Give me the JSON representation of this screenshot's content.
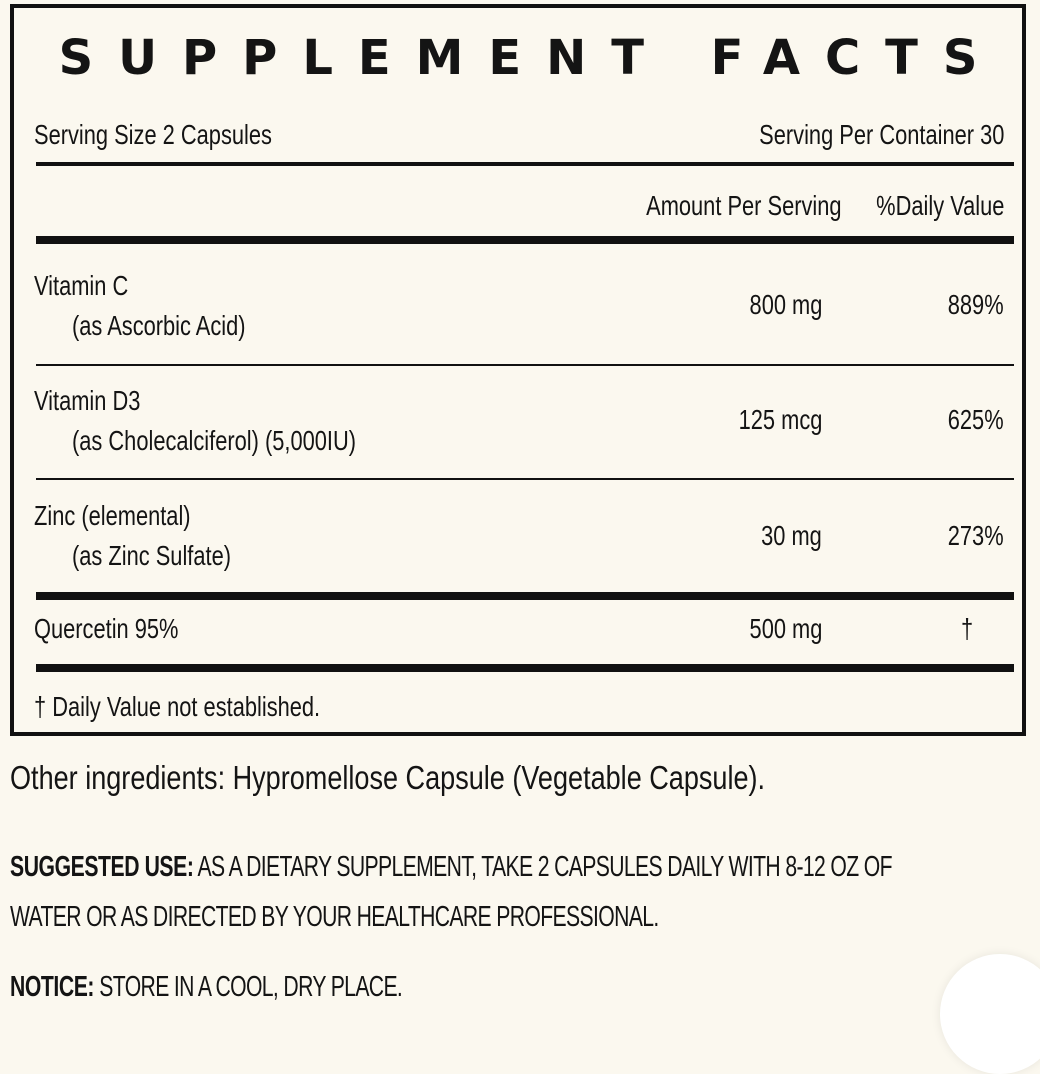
{
  "panel": {
    "title": "SUPPLEMENT FACTS",
    "serving_size": "Serving Size 2 Capsules",
    "servings_per_container": "Serving Per Container  30",
    "amount_header": "Amount Per Serving",
    "dv_header": "%Daily Value",
    "rows": [
      {
        "name": "Vitamin C",
        "detail": "(as Ascorbic Acid)",
        "amount": "800 mg",
        "dv": "889%"
      },
      {
        "name": "Vitamin D3",
        "detail": "(as Cholecalciferol) (5,000IU)",
        "amount": "125 mcg",
        "dv": "625%"
      },
      {
        "name": "Zinc (elemental)",
        "detail": "(as Zinc Sulfate)",
        "amount": "30 mg",
        "dv": "273%"
      },
      {
        "name": "Quercetin 95%",
        "amount": "500 mg",
        "dv": "†"
      }
    ],
    "footnote": "† Daily Value not established."
  },
  "other_ingredients": "Other ingredients: Hypromellose Capsule (Vegetable Capsule).",
  "suggested_use": {
    "label": "SUGGESTED USE:",
    "line1": " AS A DIETARY SUPPLEMENT, TAKE 2 CAPSULES DAILY WITH 8-12 OZ OF",
    "line2": "WATER OR AS DIRECTED BY YOUR HEALTHCARE PROFESSIONAL."
  },
  "notice": {
    "label": "NOTICE:",
    "text": " STORE IN A COOL, DRY PLACE."
  }
}
